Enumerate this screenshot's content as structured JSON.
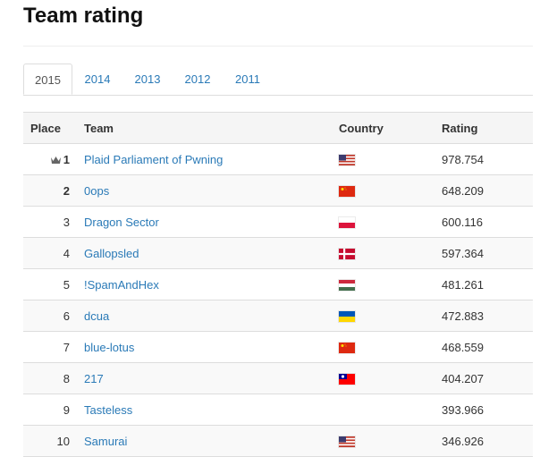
{
  "page": {
    "title": "Team rating"
  },
  "tabs": [
    {
      "label": "2015",
      "active": true
    },
    {
      "label": "2014",
      "active": false
    },
    {
      "label": "2013",
      "active": false
    },
    {
      "label": "2012",
      "active": false
    },
    {
      "label": "2011",
      "active": false
    }
  ],
  "table": {
    "headers": {
      "place": "Place",
      "team": "Team",
      "country": "Country",
      "rating": "Rating"
    },
    "rows": [
      {
        "place": "1",
        "team": "Plaid Parliament of Pwning",
        "country_flag": "us-flag-icon",
        "rating": "978.754"
      },
      {
        "place": "2",
        "team": "0ops",
        "country_flag": "cn-flag-icon",
        "rating": "648.209"
      },
      {
        "place": "3",
        "team": "Dragon Sector",
        "country_flag": "pl-flag-icon",
        "rating": "600.116"
      },
      {
        "place": "4",
        "team": "Gallopsled",
        "country_flag": "dk-flag-icon",
        "rating": "597.364"
      },
      {
        "place": "5",
        "team": "!SpamAndHex",
        "country_flag": "hu-flag-icon",
        "rating": "481.261"
      },
      {
        "place": "6",
        "team": "dcua",
        "country_flag": "ua-flag-icon",
        "rating": "472.883"
      },
      {
        "place": "7",
        "team": "blue-lotus",
        "country_flag": "cn-flag-icon",
        "rating": "468.559"
      },
      {
        "place": "8",
        "team": "217",
        "country_flag": "tw-flag-icon",
        "rating": "404.207"
      },
      {
        "place": "9",
        "team": "Tasteless",
        "country_flag": "",
        "rating": "393.966"
      },
      {
        "place": "10",
        "team": "Samurai",
        "country_flag": "us-flag-icon",
        "rating": "346.926"
      }
    ]
  },
  "colors": {
    "link": "#2a7ab7",
    "border": "#dddddd",
    "header_bg": "#f5f5f5"
  }
}
